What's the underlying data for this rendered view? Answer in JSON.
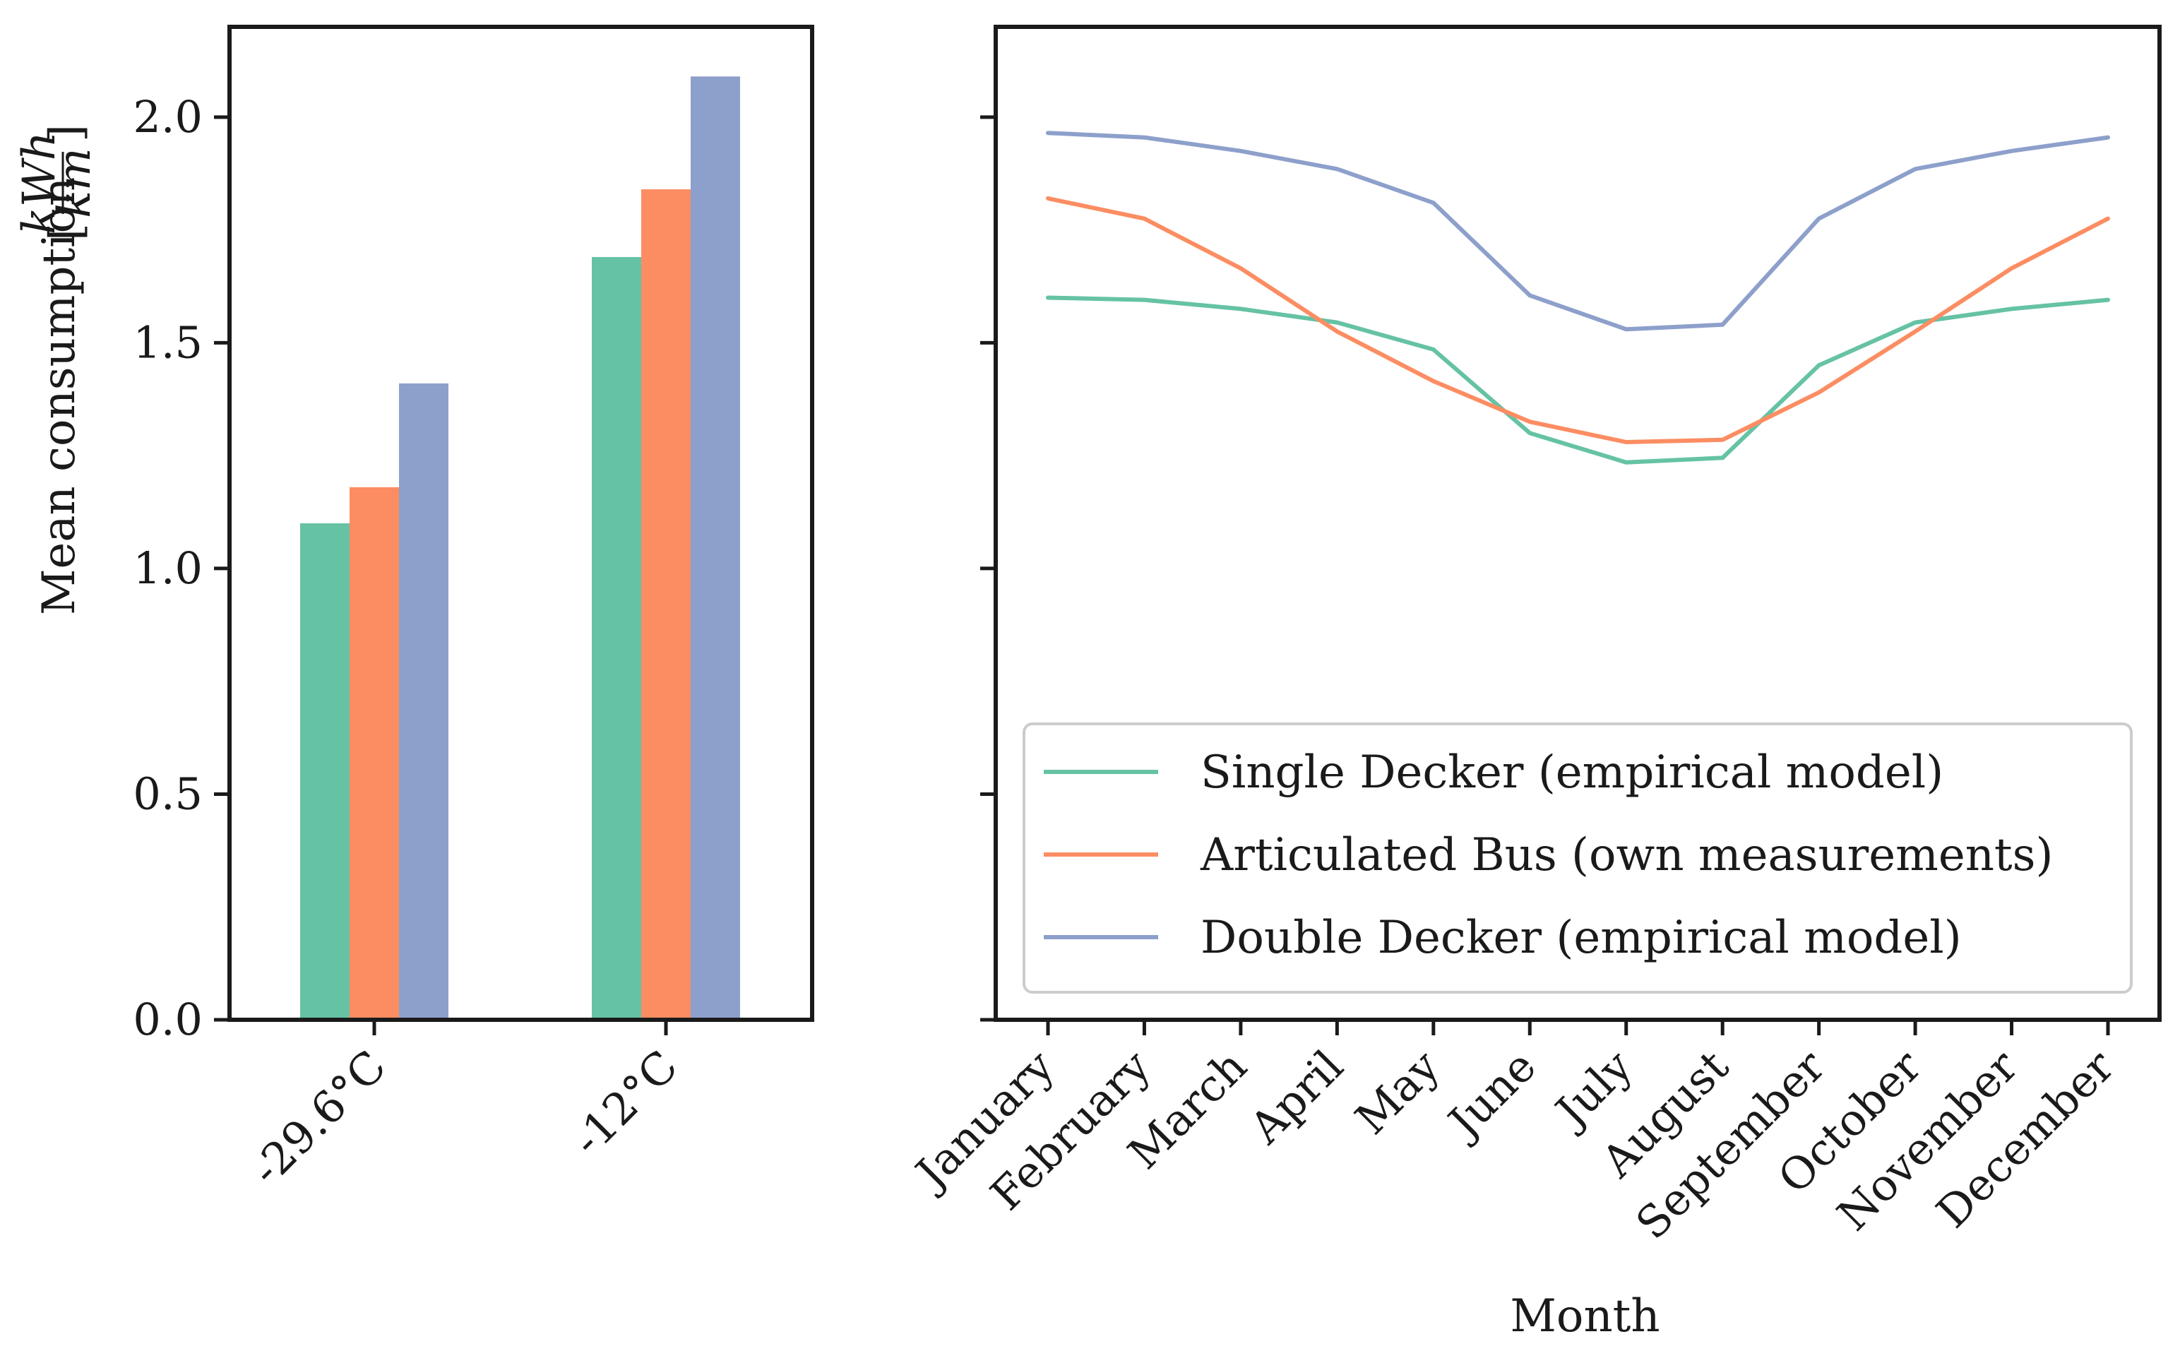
{
  "chart_data": [
    {
      "type": "bar",
      "ylabel": "Mean consumption",
      "ylabel_unit": {
        "numerator": "kWh",
        "denominator": "km"
      },
      "categories": [
        "-29.6°C",
        "-12°C"
      ],
      "ylim": [
        0,
        2.2
      ],
      "yticks": [
        0.0,
        0.5,
        1.0,
        1.5,
        2.0
      ],
      "ytick_labels": [
        "0.0",
        "0.5",
        "1.0",
        "1.5",
        "2.0"
      ],
      "series": [
        {
          "name": "Single Decker (empirical model)",
          "color": "#66c2a5",
          "values": [
            1.1,
            1.69
          ]
        },
        {
          "name": "Articulated Bus (own measurements)",
          "color": "#fc8d62",
          "values": [
            1.18,
            1.84
          ]
        },
        {
          "name": "Double Decker (empirical model)",
          "color": "#8da0cb",
          "values": [
            1.41,
            2.09
          ]
        }
      ]
    },
    {
      "type": "line",
      "xlabel": "Month",
      "categories": [
        "January",
        "February",
        "March",
        "April",
        "May",
        "June",
        "July",
        "August",
        "September",
        "October",
        "November",
        "December"
      ],
      "ylim": [
        0,
        2.2
      ],
      "yticks": [
        0.0,
        0.5,
        1.0,
        1.5,
        2.0
      ],
      "legend_position": "lower-right",
      "series": [
        {
          "name": "Single Decker (empirical model)",
          "color": "#66c2a5",
          "values": [
            1.6,
            1.595,
            1.575,
            1.545,
            1.485,
            1.3,
            1.235,
            1.245,
            1.45,
            1.545,
            1.575,
            1.595
          ]
        },
        {
          "name": "Articulated Bus (own measurements)",
          "color": "#fc8d62",
          "values": [
            1.82,
            1.775,
            1.665,
            1.525,
            1.415,
            1.325,
            1.28,
            1.285,
            1.39,
            1.525,
            1.665,
            1.775
          ]
        },
        {
          "name": "Double Decker (empirical model)",
          "color": "#8da0cb",
          "values": [
            1.965,
            1.955,
            1.925,
            1.885,
            1.81,
            1.605,
            1.53,
            1.54,
            1.775,
            1.885,
            1.925,
            1.955
          ]
        }
      ]
    }
  ]
}
